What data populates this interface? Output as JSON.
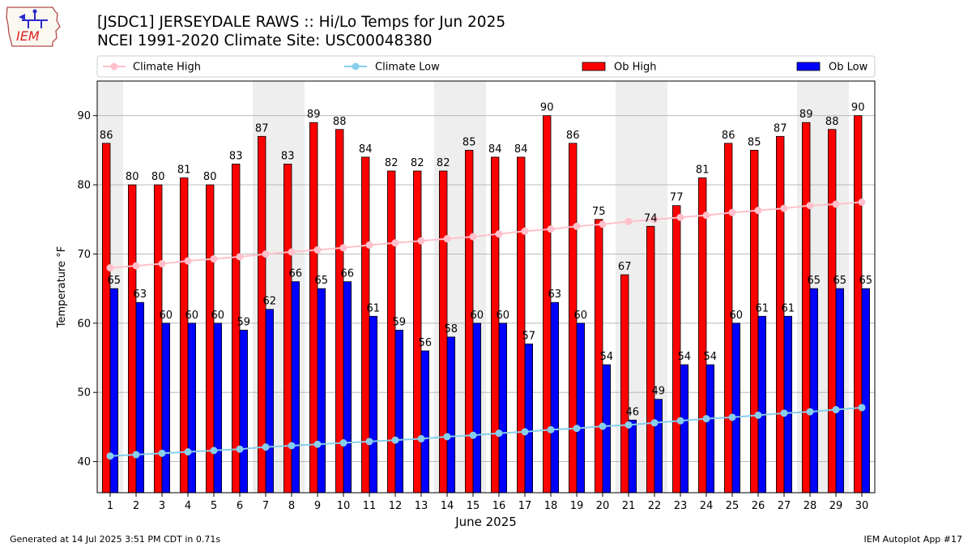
{
  "header": {
    "title_line1": "[JSDC1] JERSEYDALE RAWS :: Hi/Lo Temps for Jun 2025",
    "title_line2": "NCEI 1991-2020 Climate Site: USC00048380",
    "logo_text": "IEM"
  },
  "footer": {
    "generated": "Generated at 14 Jul 2025 3:51 PM CDT in 0.71s",
    "app": "IEM Autoplot App #17"
  },
  "colors": {
    "ob_high": "#ff0000",
    "ob_low": "#0000ff",
    "climate_high": "#ffc0cb",
    "climate_low": "#87ceeb",
    "weekend_shade": "#eeeeee",
    "grid": "#b0b0b0"
  },
  "chart_data": {
    "type": "bar",
    "xlabel": "June 2025",
    "ylabel": "Temperature °F",
    "ylim": [
      35.5,
      95
    ],
    "yticks": [
      40,
      50,
      60,
      70,
      80,
      90
    ],
    "grid": "horizontal",
    "legend_position": "top",
    "categories": [
      1,
      2,
      3,
      4,
      5,
      6,
      7,
      8,
      9,
      10,
      11,
      12,
      13,
      14,
      15,
      16,
      17,
      18,
      19,
      20,
      21,
      22,
      23,
      24,
      25,
      26,
      27,
      28,
      29,
      30
    ],
    "shaded_days": [
      1,
      7,
      8,
      14,
      15,
      21,
      22,
      28,
      29
    ],
    "series": [
      {
        "name": "Ob High",
        "kind": "bar",
        "values": [
          86,
          80,
          80,
          81,
          80,
          83,
          87,
          83,
          89,
          88,
          84,
          82,
          82,
          82,
          85,
          84,
          84,
          90,
          86,
          75,
          67,
          74,
          77,
          81,
          86,
          85,
          87,
          89,
          88,
          90
        ]
      },
      {
        "name": "Ob Low",
        "kind": "bar",
        "values": [
          65,
          63,
          60,
          60,
          60,
          59,
          62,
          66,
          65,
          66,
          61,
          59,
          56,
          58,
          60,
          60,
          57,
          63,
          60,
          54,
          46,
          49,
          54,
          54,
          60,
          61,
          61,
          65,
          65,
          65
        ]
      },
      {
        "name": "Climate High",
        "kind": "line",
        "values": [
          68.0,
          68.3,
          68.6,
          69.0,
          69.3,
          69.6,
          70.0,
          70.3,
          70.6,
          70.9,
          71.3,
          71.6,
          71.9,
          72.2,
          72.5,
          72.9,
          73.3,
          73.6,
          74.0,
          74.3,
          74.7,
          75.0,
          75.3,
          75.6,
          76.0,
          76.3,
          76.6,
          77.0,
          77.2,
          77.5
        ]
      },
      {
        "name": "Climate Low",
        "kind": "line",
        "values": [
          40.8,
          41.0,
          41.2,
          41.4,
          41.6,
          41.8,
          42.1,
          42.3,
          42.5,
          42.7,
          42.9,
          43.1,
          43.3,
          43.6,
          43.8,
          44.1,
          44.3,
          44.6,
          44.8,
          45.1,
          45.3,
          45.6,
          45.9,
          46.2,
          46.4,
          46.7,
          47.0,
          47.2,
          47.5,
          47.8
        ]
      }
    ]
  }
}
